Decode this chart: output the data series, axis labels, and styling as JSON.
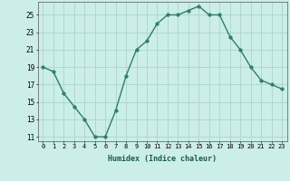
{
  "x": [
    0,
    1,
    2,
    3,
    4,
    5,
    6,
    7,
    8,
    9,
    10,
    11,
    12,
    13,
    14,
    15,
    16,
    17,
    18,
    19,
    20,
    21,
    22,
    23
  ],
  "y": [
    19,
    18.5,
    16,
    14.5,
    13,
    11,
    11,
    14,
    18,
    21,
    22,
    24,
    25,
    25,
    25.5,
    26,
    25,
    25,
    22.5,
    21,
    19,
    17.5,
    17,
    16.5
  ],
  "line_color": "#2e7d6e",
  "marker_color": "#2e7d6e",
  "bg_color": "#cceee8",
  "grid_color": "#aad4cc",
  "xlabel": "Humidex (Indice chaleur)",
  "ylabel_ticks": [
    11,
    13,
    15,
    17,
    19,
    21,
    23,
    25
  ],
  "xlim": [
    -0.5,
    23.5
  ],
  "ylim": [
    10.5,
    26.5
  ],
  "xtick_labels": [
    "0",
    "1",
    "2",
    "3",
    "4",
    "5",
    "6",
    "7",
    "8",
    "9",
    "10",
    "11",
    "12",
    "13",
    "14",
    "15",
    "16",
    "17",
    "18",
    "19",
    "20",
    "21",
    "22",
    "23"
  ]
}
